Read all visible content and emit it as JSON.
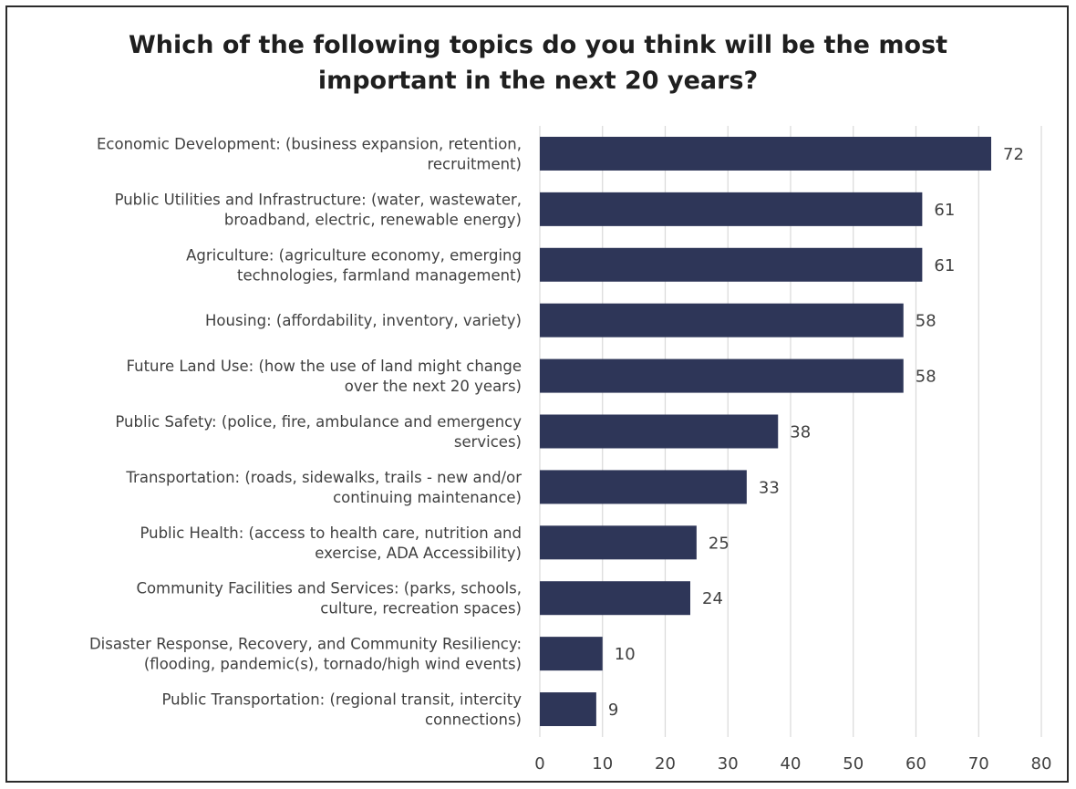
{
  "chart_data": {
    "type": "bar",
    "orientation": "horizontal",
    "title": "Which of the following topics do you think will be the most important in the next 20 years?",
    "title_lines": [
      "Which of the following topics do you think will be the most",
      "important in the next 20 years?"
    ],
    "categories": [
      [
        "Economic Development: (business expansion, retention,",
        "recruitment)"
      ],
      [
        "Public Utilities and Infrastructure: (water, wastewater,",
        "broadband, electric, renewable energy)"
      ],
      [
        "Agriculture: (agriculture economy, emerging",
        "technologies, farmland management)"
      ],
      [
        "Housing: (affordability, inventory, variety)"
      ],
      [
        "Future Land Use: (how the use of land might change",
        "over the next 20 years)"
      ],
      [
        "Public Safety: (police, fire, ambulance and emergency",
        "services)"
      ],
      [
        "Transportation: (roads, sidewalks, trails - new and/or",
        "continuing maintenance)"
      ],
      [
        "Public Health: (access to health care, nutrition and",
        "exercise, ADA Accessibility)"
      ],
      [
        "Community Facilities and Services: (parks, schools,",
        "culture, recreation spaces)"
      ],
      [
        "Disaster Response, Recovery, and Community Resiliency:",
        "(flooding, pandemic(s), tornado/high wind events)"
      ],
      [
        "Public Transportation: (regional transit, intercity",
        "connections)"
      ]
    ],
    "values": [
      72,
      61,
      61,
      58,
      58,
      38,
      33,
      25,
      24,
      10,
      9
    ],
    "xlim": [
      0,
      80
    ],
    "xticks": [
      0,
      10,
      20,
      30,
      40,
      50,
      60,
      70,
      80
    ],
    "grid": "vertical",
    "data_labels": true,
    "bar_color": "#2e3658",
    "grid_color": "#d9d9d9"
  }
}
